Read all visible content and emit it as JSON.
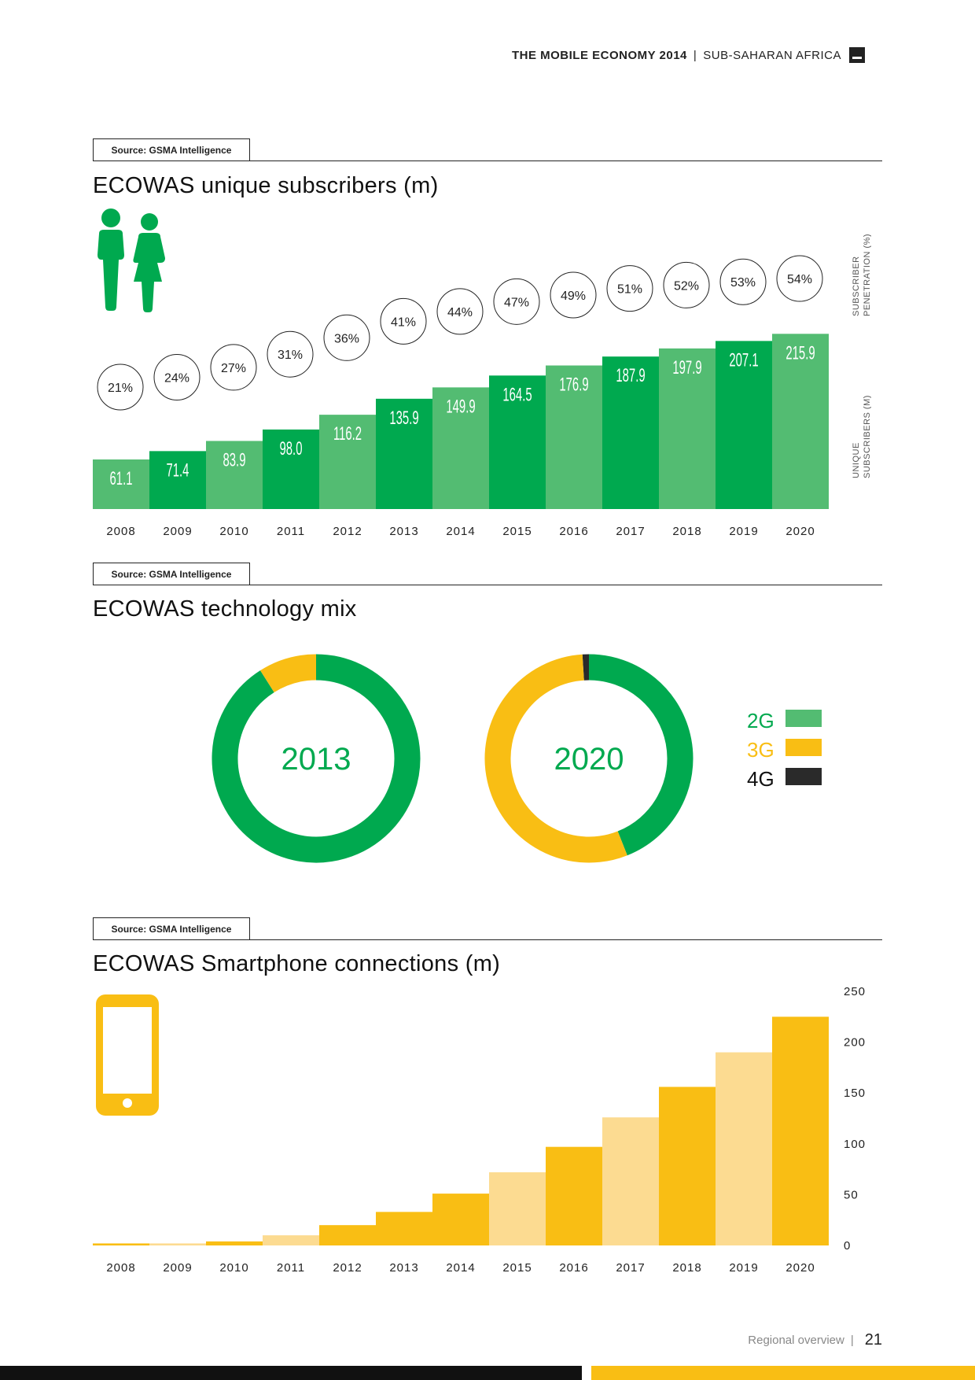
{
  "header": {
    "title_bold": "THE MOBILE ECONOMY 2014",
    "separator": "|",
    "title_region": "SUB-SAHARAN AFRICA"
  },
  "colors": {
    "green": "#00a94f",
    "green_light": "#53bc72",
    "yellow": "#f9be14",
    "yellow_light": "#fcdb91",
    "dark": "#2a2a2a"
  },
  "sections": [
    {
      "source": "Source: GSMA Intelligence",
      "title": "ECOWAS unique subscribers (m)"
    },
    {
      "source": "Source: GSMA Intelligence",
      "title": "ECOWAS technology mix"
    },
    {
      "source": "Source: GSMA Intelligence",
      "title": "ECOWAS Smartphone connections (m)"
    }
  ],
  "axis_labels": {
    "penetration": [
      "SUBSCRIBER",
      "PENETRATION (%)"
    ],
    "subscribers": [
      "UNIQUE",
      "SUBSCRIBERS (M)"
    ]
  },
  "chart_data": [
    {
      "type": "bar",
      "title": "ECOWAS unique subscribers (m)",
      "categories": [
        "2008",
        "2009",
        "2010",
        "2011",
        "2012",
        "2013",
        "2014",
        "2015",
        "2016",
        "2017",
        "2018",
        "2019",
        "2020"
      ],
      "series": [
        {
          "name": "Unique subscribers (m)",
          "values": [
            61.1,
            71.4,
            83.9,
            98.0,
            116.2,
            135.9,
            149.9,
            164.5,
            176.9,
            187.9,
            197.9,
            207.1,
            215.9
          ],
          "labels": [
            "61.1",
            "71.4",
            "83.9",
            "98.0",
            "116.2",
            "135.9",
            "149.9",
            "164.5",
            "176.9",
            "187.9",
            "197.9",
            "207.1",
            "215.9"
          ]
        },
        {
          "name": "Subscriber penetration (%)",
          "values": [
            21,
            24,
            27,
            31,
            36,
            41,
            44,
            47,
            49,
            51,
            52,
            53,
            54
          ],
          "labels": [
            "21%",
            "24%",
            "27%",
            "31%",
            "36%",
            "41%",
            "44%",
            "47%",
            "49%",
            "51%",
            "52%",
            "53%",
            "54%"
          ]
        }
      ],
      "ylabel": "UNIQUE SUBSCRIBERS (M)"
    },
    {
      "type": "pie",
      "title": "ECOWAS technology mix",
      "legend": [
        "2G",
        "3G",
        "4G"
      ],
      "charts": [
        {
          "label": "2013",
          "values": {
            "2G": 91,
            "3G": 9,
            "4G": 0
          }
        },
        {
          "label": "2020",
          "values": {
            "2G": 44,
            "3G": 55,
            "4G": 1
          }
        }
      ]
    },
    {
      "type": "bar",
      "title": "ECOWAS Smartphone connections (m)",
      "categories": [
        "2008",
        "2009",
        "2010",
        "2011",
        "2012",
        "2013",
        "2014",
        "2015",
        "2016",
        "2017",
        "2018",
        "2019",
        "2020"
      ],
      "values": [
        2,
        2,
        4,
        10,
        20,
        33,
        51,
        72,
        97,
        126,
        156,
        190,
        225
      ],
      "yticks": [
        "250",
        "200",
        "150",
        "100",
        "50",
        "0"
      ],
      "ylim": [
        0,
        250
      ]
    }
  ],
  "footer": {
    "section": "Regional overview",
    "separator": "|",
    "page": "21"
  }
}
